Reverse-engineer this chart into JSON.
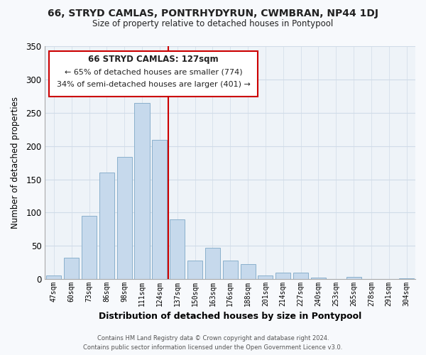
{
  "title": "66, STRYD CAMLAS, PONTRHYDYRUN, CWMBRAN, NP44 1DJ",
  "subtitle": "Size of property relative to detached houses in Pontypool",
  "xlabel": "Distribution of detached houses by size in Pontypool",
  "ylabel": "Number of detached properties",
  "bar_labels": [
    "47sqm",
    "60sqm",
    "73sqm",
    "86sqm",
    "98sqm",
    "111sqm",
    "124sqm",
    "137sqm",
    "150sqm",
    "163sqm",
    "176sqm",
    "188sqm",
    "201sqm",
    "214sqm",
    "227sqm",
    "240sqm",
    "253sqm",
    "265sqm",
    "278sqm",
    "291sqm",
    "304sqm"
  ],
  "bar_values": [
    6,
    32,
    95,
    160,
    184,
    265,
    209,
    90,
    28,
    47,
    28,
    23,
    5,
    10,
    10,
    2,
    0,
    3,
    0,
    0,
    1
  ],
  "bar_color": "#c6d9ec",
  "bar_edge_color": "#8ab0cc",
  "vline_x": 6.5,
  "vline_color": "#cc0000",
  "ylim": [
    0,
    350
  ],
  "yticks": [
    0,
    50,
    100,
    150,
    200,
    250,
    300,
    350
  ],
  "annotation_title": "66 STRYD CAMLAS: 127sqm",
  "annotation_line1": "← 65% of detached houses are smaller (774)",
  "annotation_line2": "34% of semi-detached houses are larger (401) →",
  "footer1": "Contains HM Land Registry data © Crown copyright and database right 2024.",
  "footer2": "Contains public sector information licensed under the Open Government Licence v3.0.",
  "background_color": "#f7f9fc",
  "plot_bg_color": "#eef3f8",
  "grid_color": "#d0dce8"
}
